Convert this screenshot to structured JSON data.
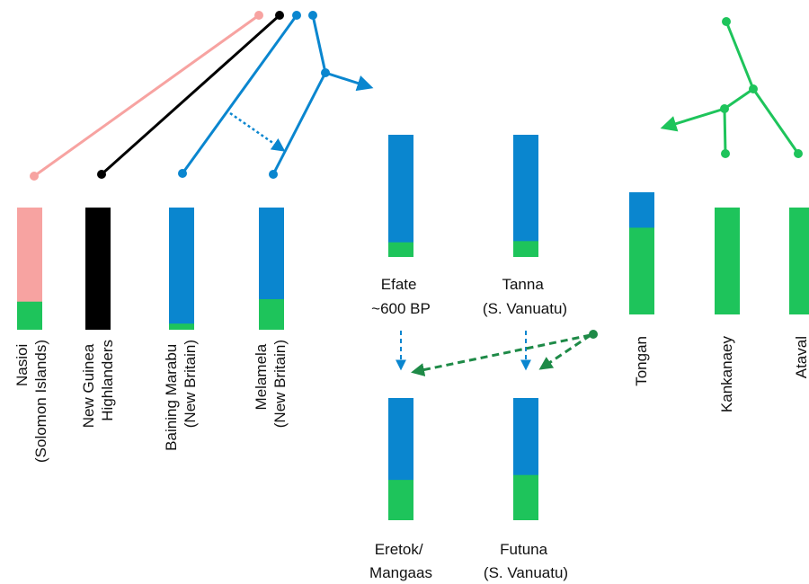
{
  "colors": {
    "papuan_solomon": "#f7a3a1",
    "papuan_highland": "#000000",
    "lapita_east_asian": "#0a86cf",
    "austronesian_green": "#1ec45b"
  },
  "populations": [
    {
      "id": "nasioi",
      "name_line1": "Nasioi",
      "name_line2": "(Solomon Islands)",
      "top_color": "papuan_solomon",
      "green_fraction": 0.23
    },
    {
      "id": "ng-highlanders",
      "name_line1": "New Guinea",
      "name_line2": "Highlanders",
      "top_color": "papuan_highland",
      "green_fraction": 0.0
    },
    {
      "id": "baining-marabu",
      "name_line1": "Baining Marabu",
      "name_line2": "(New Britain)",
      "top_color": "lapita_east_asian",
      "green_fraction": 0.05
    },
    {
      "id": "melamela",
      "name_line1": "Melamela",
      "name_line2": "(New Britain)",
      "top_color": "lapita_east_asian",
      "green_fraction": 0.25
    },
    {
      "id": "efate",
      "name_line1": "Efate",
      "name_line2": "~600 BP",
      "top_color": "lapita_east_asian",
      "green_fraction": 0.12
    },
    {
      "id": "tanna",
      "name_line1": "Tanna",
      "name_line2": "(S. Vanuatu)",
      "top_color": "lapita_east_asian",
      "green_fraction": 0.13
    },
    {
      "id": "eretok",
      "name_line1": "Eretok/",
      "name_line2": "Mangaas",
      "top_color": "lapita_east_asian",
      "green_fraction": 0.33
    },
    {
      "id": "futuna",
      "name_line1": "Futuna",
      "name_line2": "(S. Vanuatu)",
      "top_color": "lapita_east_asian",
      "green_fraction": 0.37
    },
    {
      "id": "tongan",
      "name_line1": "Tongan",
      "name_line2": "",
      "top_color": "lapita_east_asian",
      "green_fraction": 0.71
    },
    {
      "id": "kankanaey",
      "name_line1": "Kankanaey",
      "name_line2": "",
      "top_color": "lapita_east_asian",
      "green_fraction": 1.0
    },
    {
      "id": "ataval",
      "name_line1": "Ataval",
      "name_line2": "",
      "top_color": "lapita_east_asian",
      "green_fraction": 1.0
    }
  ]
}
